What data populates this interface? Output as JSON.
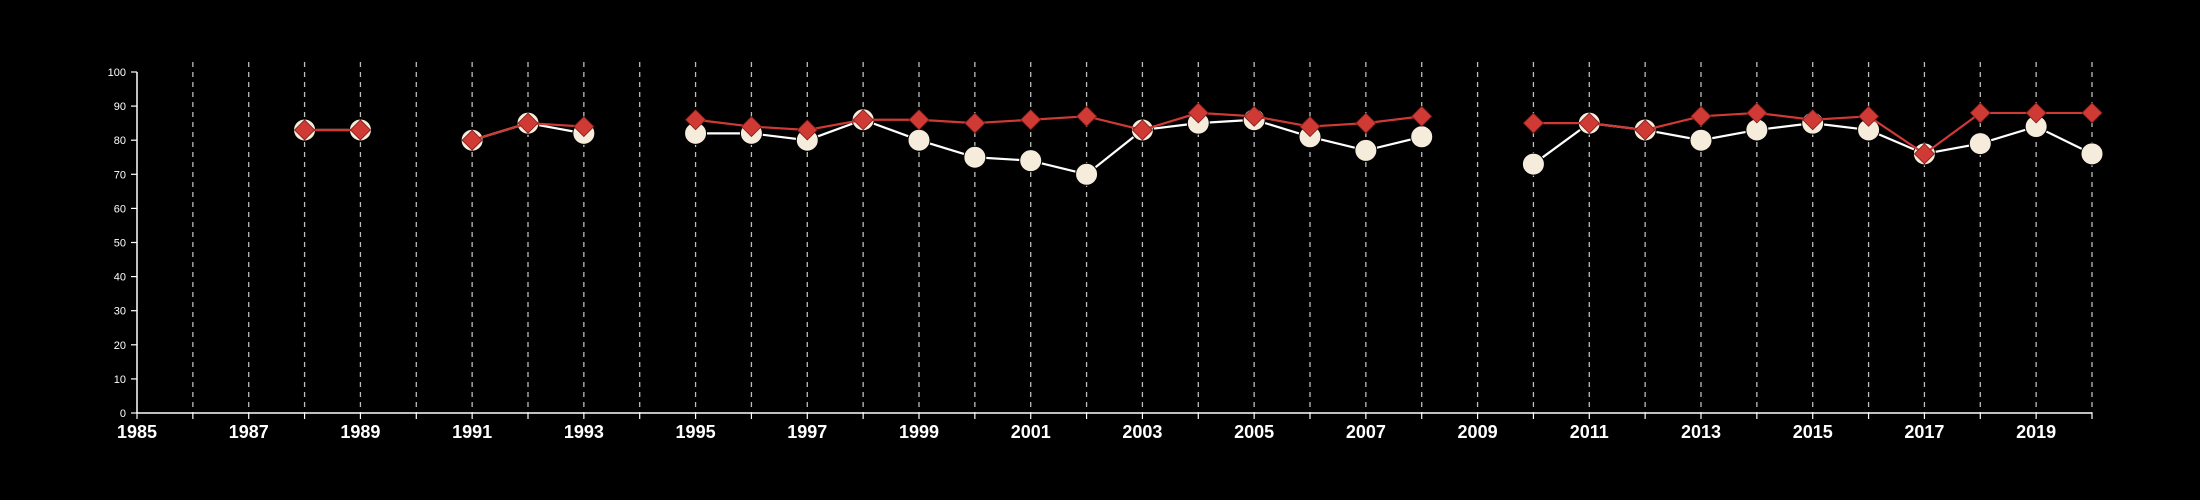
{
  "chart_data": {
    "type": "line",
    "background": "#000000",
    "axis_color": "#ffffff",
    "grid": "dashed vertical lines at each year",
    "xlim": [
      1985,
      2020
    ],
    "ylim": [
      0,
      100
    ],
    "x_ticks": [
      1985,
      1987,
      1989,
      1991,
      1993,
      1995,
      1997,
      1999,
      2001,
      2003,
      2005,
      2007,
      2009,
      2011,
      2013,
      2015,
      2017,
      2019
    ],
    "y_ticks": [
      0,
      10,
      20,
      30,
      40,
      50,
      60,
      70,
      80,
      90,
      100
    ],
    "series": [
      {
        "marker": "circle",
        "color": "#f5ecdc",
        "line_color": "#ffffff",
        "points": [
          {
            "x": 1988,
            "y": 83
          },
          {
            "x": 1989,
            "y": 83
          },
          {
            "x": 1991,
            "y": 80
          },
          {
            "x": 1992,
            "y": 85
          },
          {
            "x": 1993,
            "y": 82
          },
          {
            "x": 1995,
            "y": 82
          },
          {
            "x": 1996,
            "y": 82
          },
          {
            "x": 1997,
            "y": 80
          },
          {
            "x": 1998,
            "y": 86
          },
          {
            "x": 1999,
            "y": 80
          },
          {
            "x": 2000,
            "y": 75
          },
          {
            "x": 2001,
            "y": 74
          },
          {
            "x": 2002,
            "y": 70
          },
          {
            "x": 2003,
            "y": 83
          },
          {
            "x": 2004,
            "y": 85
          },
          {
            "x": 2005,
            "y": 86
          },
          {
            "x": 2006,
            "y": 81
          },
          {
            "x": 2007,
            "y": 77
          },
          {
            "x": 2008,
            "y": 81
          },
          {
            "x": 2010,
            "y": 73
          },
          {
            "x": 2011,
            "y": 85
          },
          {
            "x": 2012,
            "y": 83
          },
          {
            "x": 2013,
            "y": 80
          },
          {
            "x": 2014,
            "y": 83
          },
          {
            "x": 2015,
            "y": 85
          },
          {
            "x": 2016,
            "y": 83
          },
          {
            "x": 2017,
            "y": 76
          },
          {
            "x": 2018,
            "y": 79
          },
          {
            "x": 2019,
            "y": 84
          },
          {
            "x": 2020,
            "y": 76
          }
        ]
      },
      {
        "marker": "diamond",
        "color": "#d03a35",
        "line_color": "#d03a35",
        "points": [
          {
            "x": 1988,
            "y": 83
          },
          {
            "x": 1989,
            "y": 83
          },
          {
            "x": 1991,
            "y": 80
          },
          {
            "x": 1992,
            "y": 85
          },
          {
            "x": 1993,
            "y": 84
          },
          {
            "x": 1995,
            "y": 86
          },
          {
            "x": 1996,
            "y": 84
          },
          {
            "x": 1997,
            "y": 83
          },
          {
            "x": 1998,
            "y": 86
          },
          {
            "x": 1999,
            "y": 86
          },
          {
            "x": 2000,
            "y": 85
          },
          {
            "x": 2001,
            "y": 86
          },
          {
            "x": 2002,
            "y": 87
          },
          {
            "x": 2003,
            "y": 83
          },
          {
            "x": 2004,
            "y": 88
          },
          {
            "x": 2005,
            "y": 87
          },
          {
            "x": 2006,
            "y": 84
          },
          {
            "x": 2007,
            "y": 85
          },
          {
            "x": 2008,
            "y": 87
          },
          {
            "x": 2010,
            "y": 85
          },
          {
            "x": 2011,
            "y": 85
          },
          {
            "x": 2012,
            "y": 83
          },
          {
            "x": 2013,
            "y": 87
          },
          {
            "x": 2014,
            "y": 88
          },
          {
            "x": 2015,
            "y": 86
          },
          {
            "x": 2016,
            "y": 87
          },
          {
            "x": 2017,
            "y": 76
          },
          {
            "x": 2018,
            "y": 88
          },
          {
            "x": 2019,
            "y": 88
          },
          {
            "x": 2020,
            "y": 88
          }
        ]
      }
    ]
  }
}
